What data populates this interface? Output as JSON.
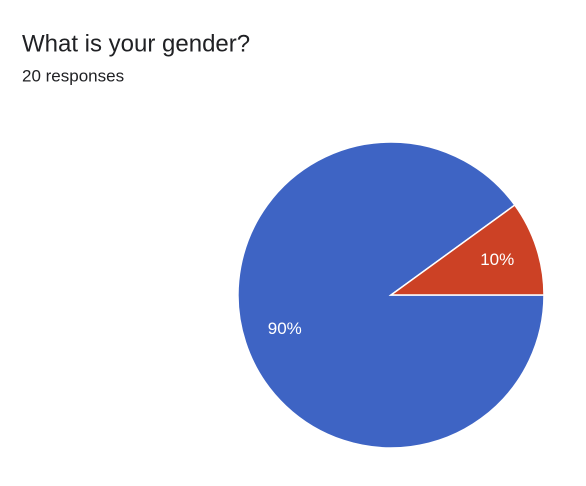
{
  "chart_data": {
    "type": "pie",
    "title": "What is your gender?",
    "subtitle": "20 responses",
    "categories": [
      null,
      null
    ],
    "values": [
      90,
      10
    ],
    "value_labels": [
      "90%",
      "10%"
    ],
    "colors": [
      "#3e64c4",
      "#cc4125"
    ]
  }
}
